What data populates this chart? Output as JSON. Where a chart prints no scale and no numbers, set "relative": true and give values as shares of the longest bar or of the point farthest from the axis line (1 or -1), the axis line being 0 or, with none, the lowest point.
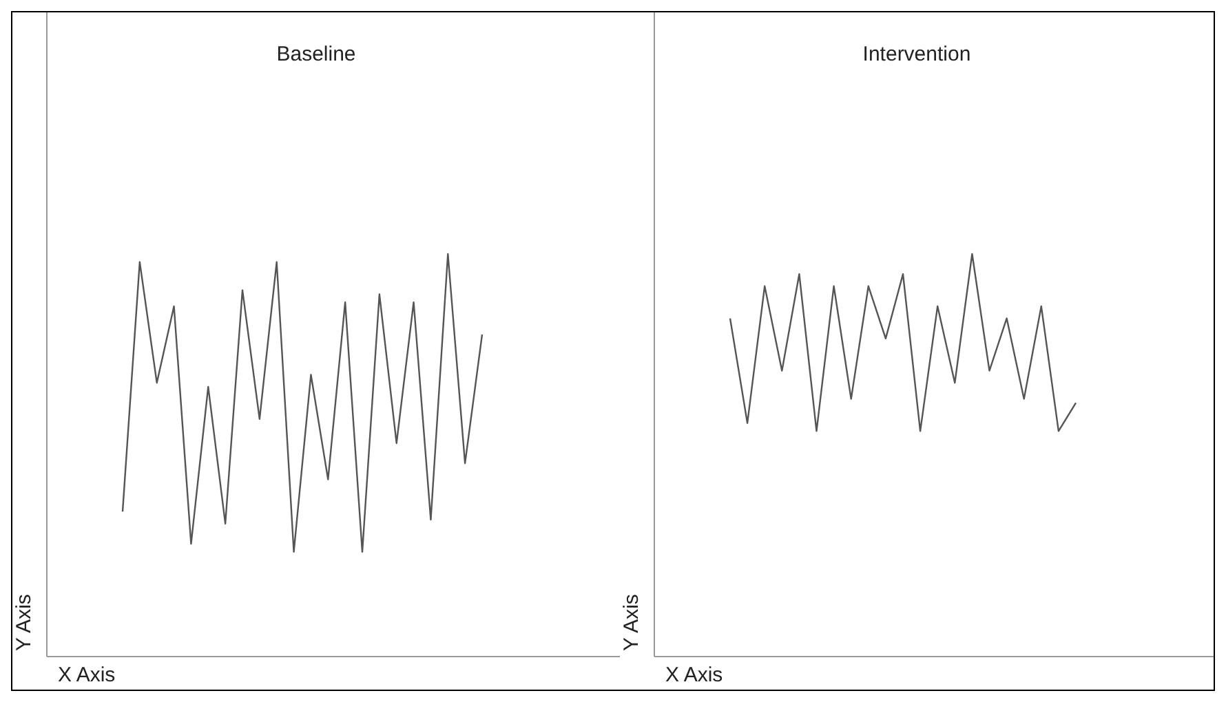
{
  "chart_data": [
    {
      "type": "line",
      "title": "Baseline",
      "xlabel": "X Axis",
      "ylabel": "Y Axis",
      "relative": true,
      "grid": false,
      "legend": false,
      "categories": [
        null,
        null,
        null,
        null,
        null,
        null,
        null,
        null,
        null,
        null,
        null,
        null,
        null,
        null,
        null,
        null,
        null,
        null,
        null,
        null,
        null,
        null
      ],
      "series": [
        {
          "color": "#555555",
          "values": [
            0.36,
            0.98,
            0.68,
            0.87,
            0.28,
            0.67,
            0.33,
            0.91,
            0.59,
            0.98,
            0.26,
            0.7,
            0.44,
            0.88,
            0.26,
            0.9,
            0.53,
            0.88,
            0.34,
            1,
            0.48,
            0.8
          ]
        }
      ]
    },
    {
      "type": "line",
      "title": "Intervention",
      "xlabel": "X Axis",
      "ylabel": "Y Axis",
      "relative": true,
      "grid": false,
      "legend": false,
      "categories": [
        null,
        null,
        null,
        null,
        null,
        null,
        null,
        null,
        null,
        null,
        null,
        null,
        null,
        null,
        null,
        null,
        null,
        null,
        null,
        null,
        null
      ],
      "series": [
        {
          "color": "#555555",
          "values": [
            0.84,
            0.58,
            0.92,
            0.71,
            0.95,
            0.56,
            0.92,
            0.64,
            0.92,
            0.79,
            0.95,
            0.56,
            0.87,
            0.68,
            1,
            0.71,
            0.84,
            0.64,
            0.87,
            0.56,
            0.63
          ]
        }
      ]
    }
  ]
}
